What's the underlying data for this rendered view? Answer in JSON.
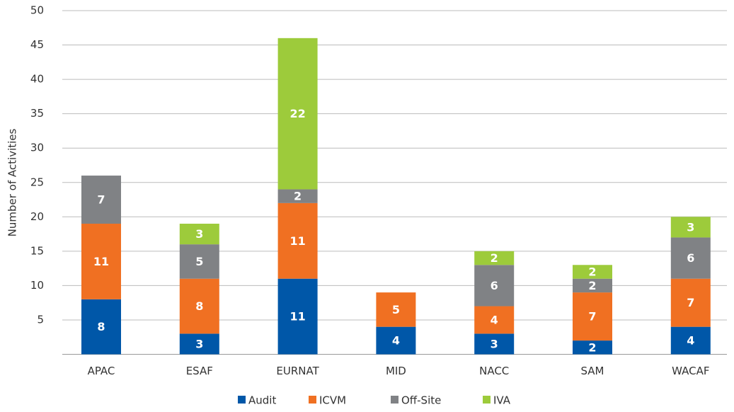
{
  "chart_data": {
    "type": "stacked_bar",
    "y_label": "Number of Activities",
    "categories": [
      "APAC",
      "ESAF",
      "EURNAT",
      "MID",
      "NACC",
      "SAM",
      "WACAF"
    ],
    "series": [
      {
        "name": "Audit",
        "color": "#0057a8",
        "values": [
          8,
          3,
          11,
          4,
          3,
          2,
          4
        ]
      },
      {
        "name": "ICVM",
        "color": "#f07022",
        "values": [
          11,
          8,
          11,
          5,
          4,
          7,
          7
        ]
      },
      {
        "name": "Off-Site",
        "color": "#808285",
        "values": [
          7,
          5,
          2,
          null,
          6,
          2,
          6
        ]
      },
      {
        "name": "IVA",
        "color": "#9dcb3b",
        "values": [
          null,
          3,
          22,
          null,
          2,
          2,
          3
        ]
      }
    ],
    "ylim": [
      0,
      50
    ],
    "yticks": [
      5,
      10,
      15,
      20,
      25,
      30,
      35,
      40,
      45,
      50
    ],
    "grid": true,
    "legend": "bottom"
  }
}
